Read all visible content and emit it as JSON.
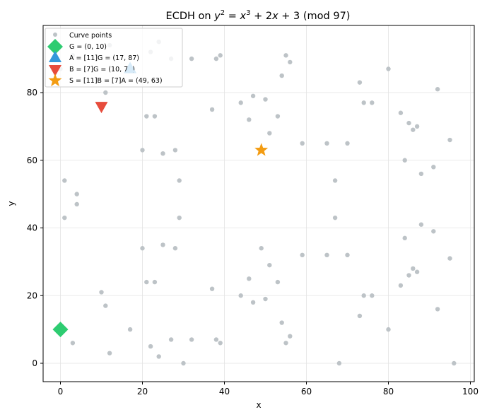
{
  "chart_data": {
    "type": "scatter",
    "title": "ECDH on y² = x³ + 2x + 3 (mod 97)",
    "title_parts": {
      "prefix": "ECDH on ",
      "y": "y",
      "sq": "2",
      "eq": " = ",
      "x": "x",
      "cube": "3",
      "rest": " + 2",
      "x2": "x",
      "tail": " + 3 (mod 97)"
    },
    "xlabel": "x",
    "ylabel": "y",
    "xlim": [
      -4.8,
      101
    ],
    "ylim": [
      -4.8,
      99.5
    ],
    "xticks": [
      0,
      20,
      40,
      60,
      80,
      100
    ],
    "yticks": [
      0,
      20,
      40,
      60,
      80
    ],
    "grid": true,
    "legend_position": "upper left",
    "series": [
      {
        "name": "Curve points",
        "marker": "circle",
        "color": "#bdc3c7",
        "points": [
          [
            0,
            10
          ],
          [
            0,
            87
          ],
          [
            1,
            43
          ],
          [
            1,
            54
          ],
          [
            3,
            6
          ],
          [
            3,
            91
          ],
          [
            4,
            47
          ],
          [
            4,
            50
          ],
          [
            10,
            21
          ],
          [
            10,
            76
          ],
          [
            11,
            17
          ],
          [
            11,
            80
          ],
          [
            12,
            3
          ],
          [
            12,
            94
          ],
          [
            17,
            10
          ],
          [
            17,
            87
          ],
          [
            20,
            34
          ],
          [
            20,
            63
          ],
          [
            21,
            24
          ],
          [
            21,
            73
          ],
          [
            22,
            5
          ],
          [
            22,
            92
          ],
          [
            23,
            24
          ],
          [
            23,
            73
          ],
          [
            24,
            2
          ],
          [
            24,
            95
          ],
          [
            25,
            35
          ],
          [
            25,
            62
          ],
          [
            27,
            7
          ],
          [
            27,
            90
          ],
          [
            28,
            34
          ],
          [
            28,
            63
          ],
          [
            29,
            43
          ],
          [
            29,
            54
          ],
          [
            30,
            0
          ],
          [
            32,
            7
          ],
          [
            32,
            90
          ],
          [
            37,
            22
          ],
          [
            37,
            75
          ],
          [
            38,
            7
          ],
          [
            38,
            90
          ],
          [
            39,
            6
          ],
          [
            39,
            91
          ],
          [
            44,
            20
          ],
          [
            44,
            77
          ],
          [
            46,
            25
          ],
          [
            46,
            72
          ],
          [
            47,
            18
          ],
          [
            47,
            79
          ],
          [
            49,
            34
          ],
          [
            49,
            63
          ],
          [
            50,
            19
          ],
          [
            50,
            78
          ],
          [
            51,
            29
          ],
          [
            51,
            68
          ],
          [
            53,
            24
          ],
          [
            53,
            73
          ],
          [
            54,
            12
          ],
          [
            54,
            85
          ],
          [
            55,
            6
          ],
          [
            55,
            91
          ],
          [
            56,
            8
          ],
          [
            56,
            89
          ],
          [
            59,
            32
          ],
          [
            59,
            65
          ],
          [
            65,
            32
          ],
          [
            65,
            65
          ],
          [
            67,
            43
          ],
          [
            67,
            54
          ],
          [
            68,
            0
          ],
          [
            70,
            32
          ],
          [
            70,
            65
          ],
          [
            73,
            14
          ],
          [
            73,
            83
          ],
          [
            74,
            20
          ],
          [
            74,
            77
          ],
          [
            76,
            20
          ],
          [
            76,
            77
          ],
          [
            80,
            10
          ],
          [
            80,
            87
          ],
          [
            83,
            23
          ],
          [
            83,
            74
          ],
          [
            84,
            37
          ],
          [
            84,
            60
          ],
          [
            85,
            26
          ],
          [
            85,
            71
          ],
          [
            86,
            28
          ],
          [
            86,
            69
          ],
          [
            87,
            27
          ],
          [
            87,
            70
          ],
          [
            88,
            41
          ],
          [
            88,
            56
          ],
          [
            91,
            39
          ],
          [
            91,
            58
          ],
          [
            92,
            16
          ],
          [
            92,
            81
          ],
          [
            95,
            31
          ],
          [
            95,
            66
          ],
          [
            96,
            0
          ]
        ]
      },
      {
        "name": "G = (0, 10)",
        "marker": "diamond",
        "color": "#2ecc71",
        "points": [
          [
            0,
            10
          ]
        ]
      },
      {
        "name": "A = [11]G = (17, 87)",
        "marker": "triangle-up",
        "color": "#3498db",
        "points": [
          [
            17,
            87
          ]
        ]
      },
      {
        "name": "B = [7]G = (10, 76)",
        "marker": "triangle-down",
        "color": "#e74c3c",
        "points": [
          [
            10,
            76
          ]
        ]
      },
      {
        "name": "S = [11]B = [7]A = (49, 63)",
        "marker": "star",
        "color": "#f39c12",
        "points": [
          [
            49,
            63
          ]
        ]
      }
    ]
  }
}
